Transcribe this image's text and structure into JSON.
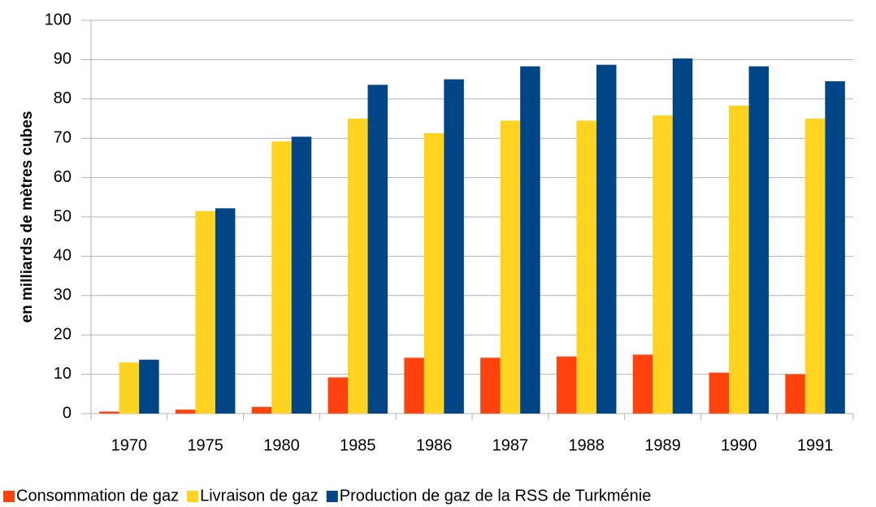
{
  "chart_data": {
    "type": "bar",
    "ylabel": "en milliards de mètres cubes",
    "categories": [
      "1970",
      "1975",
      "1980",
      "1985",
      "1986",
      "1987",
      "1988",
      "1989",
      "1990",
      "1991"
    ],
    "series": [
      {
        "name": "Consommation de gaz",
        "color": "#ff420e",
        "values": [
          0.5,
          1,
          1.7,
          9.2,
          14.2,
          14.2,
          14.5,
          15,
          10.4,
          10
        ]
      },
      {
        "name": "Livraison de gaz",
        "color": "#ffd320",
        "values": [
          13,
          51.5,
          69.2,
          75,
          71.3,
          74.5,
          74.5,
          75.8,
          78.3,
          75
        ]
      },
      {
        "name": "Production de gaz de la RSS de Turkménie",
        "color": "#004586",
        "values": [
          13.7,
          52.2,
          70.4,
          83.6,
          85,
          88.3,
          88.7,
          90.3,
          88.3,
          84.5
        ]
      }
    ],
    "ylim": [
      0,
      100
    ],
    "yticks": [
      0,
      10,
      20,
      30,
      40,
      50,
      60,
      70,
      80,
      90,
      100
    ],
    "grid": true,
    "legend": "bottom"
  }
}
